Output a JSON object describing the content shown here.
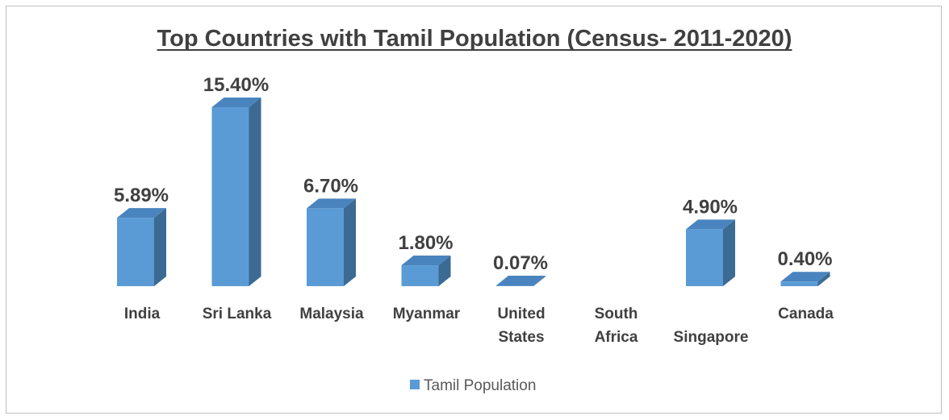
{
  "chart_data": {
    "type": "bar",
    "title": "Top Countries with Tamil Population (Census- 2011-2020)",
    "categories": [
      [
        "India"
      ],
      [
        "Sri Lanka"
      ],
      [
        "Malaysia"
      ],
      [
        "Myanmar"
      ],
      [
        "United",
        "States"
      ],
      [
        "South",
        "Africa"
      ],
      [
        "Singapore"
      ],
      [
        "Canada"
      ]
    ],
    "series": [
      {
        "name": "Tamil Population",
        "values": [
          5.89,
          15.4,
          6.7,
          1.8,
          0.07,
          null,
          4.9,
          0.4
        ],
        "labels": [
          "5.89%",
          "15.40%",
          "6.70%",
          "1.80%",
          "0.07%",
          "",
          "4.90%",
          "0.40%"
        ],
        "color": "#5b9bd5",
        "side_color": "#3b6a93",
        "top_color": "#4a84be"
      }
    ],
    "xlabel": "",
    "ylabel": "",
    "ylim": [
      0,
      15.4
    ],
    "grid": false,
    "legend": "bottom-center",
    "three_d": true
  }
}
